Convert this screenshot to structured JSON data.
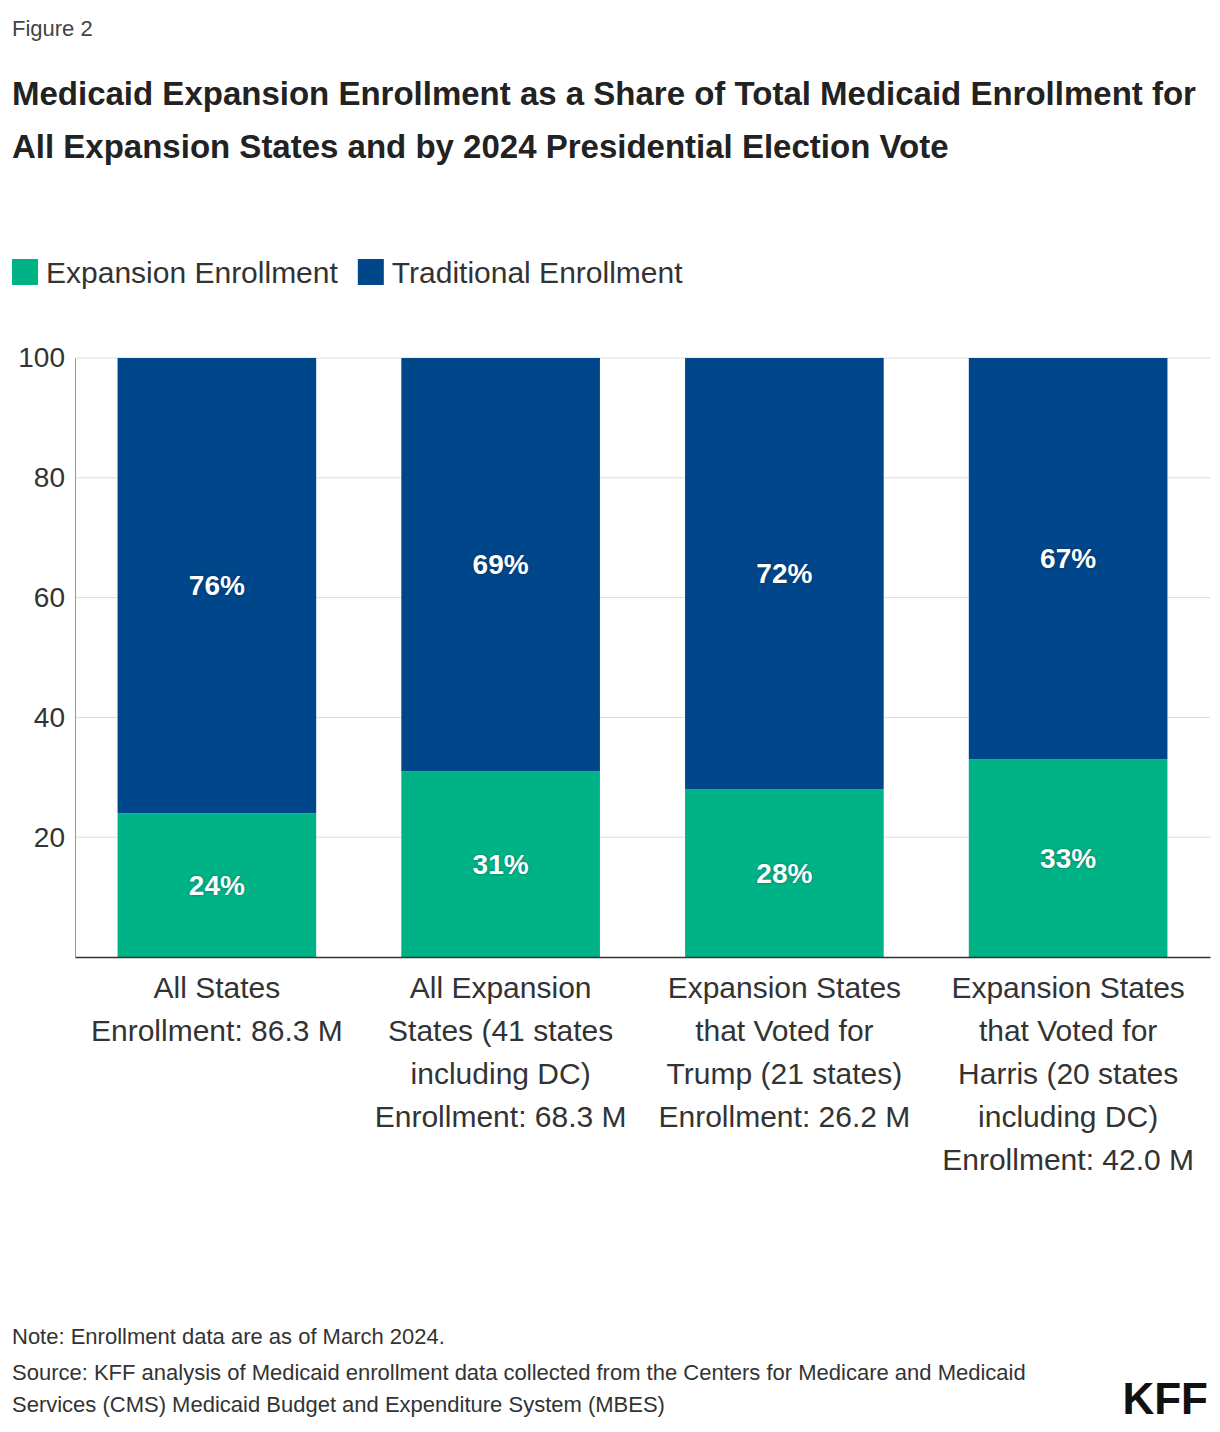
{
  "chart_data": {
    "type": "bar",
    "figure_label": "Figure 2",
    "title": "Medicaid Expansion Enrollment as a Share of Total Medicaid Enrollment for All Expansion States and by 2024 Presidential Election Vote",
    "categories": [
      "All States Enrollment: 86.3 M",
      "All Expansion States (41 states including DC) Enrollment: 68.3 M",
      "Expansion States that Voted for Trump (21 states) Enrollment: 26.2 M",
      "Expansion States that Voted for Harris (20 states including DC) Enrollment: 42.0 M"
    ],
    "series": [
      {
        "name": "Expansion Enrollment",
        "color": "#00b386",
        "values": [
          24,
          31,
          28,
          33
        ],
        "value_labels": [
          "24%",
          "31%",
          "28%",
          "33%"
        ]
      },
      {
        "name": "Traditional Enrollment",
        "color": "#00468b",
        "values": [
          76,
          69,
          72,
          67
        ],
        "value_labels": [
          "76%",
          "69%",
          "72%",
          "67%"
        ]
      }
    ],
    "ylim": [
      0,
      100
    ],
    "yticks": [
      20,
      40,
      60,
      80,
      100
    ],
    "grid": true,
    "stacked": true,
    "data_labels": true,
    "legend": "top-left",
    "annotations": [
      "Note: Enrollment data are as of March 2024.",
      "Source: KFF analysis of Medicaid enrollment data collected from the Centers for Medicare and Medicaid Services (CMS) Medicaid Budget and Expenditure System (MBES)",
      "KFF"
    ]
  }
}
